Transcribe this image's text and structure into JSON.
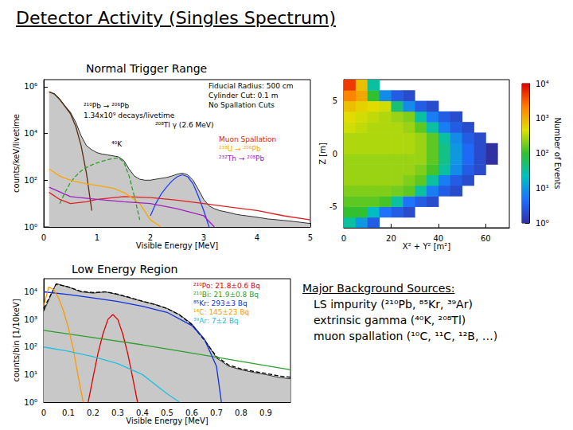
{
  "header": {
    "title": "Detector Activity (Singles Spectrum)"
  },
  "sources": {
    "title": "Major Background Sources:",
    "items": [
      "LS impurity (²¹⁰Pb, ⁸⁵Kr, ³⁹Ar)",
      "extrinsic gamma (⁴⁰K, ²⁰⁸Tl)",
      "muon spallation (¹⁰C, ¹¹C, ¹²B, …)"
    ]
  },
  "chart_data": [
    {
      "type": "line",
      "title": "Normal Trigger Range",
      "xlabel": "Visible Energy [MeV]",
      "ylabel": "counts/keV/livetime",
      "log": "y",
      "grid": false,
      "xlim": [
        0,
        5
      ],
      "xticks": [
        0,
        1,
        2,
        3,
        4,
        5
      ],
      "ylim": [
        1,
        2000000
      ],
      "yticks": [
        {
          "value": 1,
          "label": "10⁰"
        },
        {
          "value": 100,
          "label": "10²"
        },
        {
          "value": 10000,
          "label": "10⁴"
        },
        {
          "value": 1000000,
          "label": "10⁶"
        }
      ],
      "annotations": [
        "Fiducial Radius: 500 cm",
        "Cylinder Cut: 0.1 m",
        "No Spallation Cuts",
        "1.34x10⁹ decays/livetime"
      ],
      "series": [
        {
          "type": "area",
          "color": "#c8c8c8",
          "x": [
            0.1,
            0.2,
            0.3,
            0.4,
            0.5,
            0.6,
            0.7,
            0.8,
            0.9,
            1.0,
            1.1,
            1.2,
            1.3,
            1.4,
            1.5,
            1.6,
            1.7,
            1.8,
            1.9,
            2.0,
            2.1,
            2.2,
            2.3,
            2.4,
            2.5,
            2.6,
            2.7,
            2.8,
            2.9,
            3.0,
            3.1,
            3.2,
            3.3,
            3.4,
            3.5,
            3.6,
            3.7,
            3.8,
            3.9,
            4.0,
            4.1,
            4.2,
            4.3,
            4.4,
            4.5,
            4.6,
            4.7,
            4.8,
            4.9,
            5.0
          ],
          "values": [
            600000,
            500000,
            300000,
            150000,
            80000,
            30000,
            8000,
            3000,
            2000,
            1500,
            1300,
            1200,
            1100,
            1000,
            700,
            300,
            150,
            110,
            100,
            100,
            110,
            120,
            130,
            150,
            180,
            200,
            170,
            100,
            40,
            15,
            8,
            6,
            5,
            4.5,
            4,
            3.5,
            3.2,
            3,
            2.8,
            2.6,
            2.4,
            2.2,
            2.1,
            2,
            1.9,
            1.8,
            1.7,
            1.6,
            1.5,
            1.4
          ]
        },
        {
          "name": "²¹⁰Pb → ²⁰⁶Pb",
          "color": "#5a2d0c",
          "x": [
            0.1,
            0.2,
            0.3,
            0.4,
            0.5,
            0.6,
            0.7,
            0.8,
            0.9
          ],
          "values": [
            600000,
            480000,
            280000,
            140000,
            70000,
            20000,
            3000,
            200,
            5
          ]
        },
        {
          "name": "⁴⁰K",
          "color": "#2ca02c",
          "line_style": "dashed",
          "x": [
            0.3,
            0.4,
            0.5,
            0.6,
            0.7,
            0.8,
            0.9,
            1.0,
            1.1,
            1.2,
            1.3,
            1.4,
            1.5,
            1.6,
            1.7,
            1.8
          ],
          "values": [
            10,
            30,
            80,
            150,
            250,
            350,
            450,
            550,
            650,
            750,
            850,
            900,
            600,
            150,
            20,
            2
          ]
        },
        {
          "name": "²⁰⁸Tl γ (2.6 MeV)",
          "color": "#1f3fff",
          "x": [
            2.0,
            2.1,
            2.2,
            2.3,
            2.4,
            2.5,
            2.6,
            2.7,
            2.8,
            2.9,
            3.0,
            3.1
          ],
          "values": [
            3,
            10,
            25,
            50,
            90,
            140,
            170,
            140,
            70,
            20,
            5,
            1
          ]
        },
        {
          "name": "Muon Spallation",
          "color": "#e02020",
          "x": [
            0.1,
            0.3,
            0.5,
            0.8,
            1.0,
            1.5,
            2.0,
            2.5,
            3.0,
            3.5,
            4.0,
            4.5,
            5.0
          ],
          "values": [
            30,
            15,
            10,
            12,
            15,
            20,
            18,
            14,
            10,
            7,
            5,
            3,
            2
          ]
        },
        {
          "name": "²³⁸U → ²⁰⁶Pb",
          "color": "#ffa500",
          "x": [
            0.1,
            0.3,
            0.5,
            0.8,
            1.0,
            1.3,
            1.5,
            1.7,
            1.8,
            2.0,
            2.2
          ],
          "values": [
            300,
            150,
            100,
            70,
            60,
            45,
            30,
            15,
            10,
            2,
            1
          ]
        },
        {
          "name": "²³²Th → ²⁰⁸Pb",
          "color": "#a020c0",
          "x": [
            0.1,
            0.5,
            1.0,
            1.5,
            2.0,
            2.5,
            2.8,
            3.0,
            3.2
          ],
          "values": [
            50,
            20,
            15,
            12,
            10,
            6,
            4,
            3,
            1
          ]
        }
      ]
    },
    {
      "type": "heatmap",
      "xlabel": "X² + Y² [m²]",
      "ylabel": "Z [m]",
      "xlim": [
        0,
        70
      ],
      "xticks": [
        0,
        20,
        40,
        60
      ],
      "ylim": [
        -7,
        7
      ],
      "yticks": [
        -5,
        0,
        5
      ],
      "x_bins": [
        0,
        5,
        10,
        15,
        20,
        25,
        30,
        35,
        40,
        45,
        50,
        55,
        60,
        65,
        70
      ],
      "y_bins": [
        -7,
        -6,
        -5,
        -4,
        -3,
        -2,
        -1,
        0,
        1,
        2,
        3,
        4,
        5,
        6,
        7
      ],
      "counts": [
        [
          30,
          10,
          3,
          null,
          null,
          null,
          null,
          null,
          null,
          null,
          null,
          null,
          null,
          null
        ],
        [
          100,
          100,
          20,
          5,
          3,
          2,
          null,
          null,
          null,
          null,
          null,
          null,
          null,
          null
        ],
        [
          150,
          150,
          150,
          120,
          30,
          5,
          3,
          2,
          null,
          null,
          null,
          null,
          null,
          null
        ],
        [
          200,
          200,
          200,
          200,
          180,
          150,
          30,
          6,
          3,
          2,
          null,
          null,
          null,
          null
        ],
        [
          250,
          250,
          250,
          250,
          250,
          200,
          150,
          30,
          6,
          3,
          2,
          null,
          null,
          null
        ],
        [
          250,
          250,
          250,
          250,
          250,
          250,
          200,
          120,
          30,
          8,
          3,
          2,
          null,
          null
        ],
        [
          250,
          250,
          250,
          250,
          250,
          250,
          250,
          150,
          40,
          10,
          4,
          2,
          1,
          null
        ],
        [
          300,
          300,
          300,
          300,
          300,
          300,
          250,
          150,
          40,
          10,
          4,
          2,
          1,
          null
        ],
        [
          300,
          300,
          300,
          300,
          300,
          300,
          250,
          150,
          30,
          8,
          3,
          2,
          null,
          null
        ],
        [
          400,
          350,
          300,
          300,
          300,
          250,
          150,
          30,
          6,
          3,
          2,
          null,
          null,
          null
        ],
        [
          500,
          400,
          350,
          300,
          250,
          200,
          30,
          6,
          3,
          2,
          null,
          null,
          null,
          null
        ],
        [
          800,
          600,
          500,
          400,
          50,
          8,
          3,
          2,
          null,
          null,
          null,
          null,
          null,
          null
        ],
        [
          2000,
          1200,
          100,
          8,
          3,
          2,
          null,
          null,
          null,
          null,
          null,
          null,
          null,
          null
        ],
        [
          5000,
          800,
          30,
          null,
          null,
          null,
          null,
          null,
          null,
          null,
          null,
          null,
          null,
          null
        ]
      ],
      "colorbar": {
        "label": "Number of Events",
        "log": true,
        "range": [
          1,
          10000
        ],
        "ticks": [
          {
            "value": 1,
            "label": "10⁰"
          },
          {
            "value": 10,
            "label": "10¹"
          },
          {
            "value": 100,
            "label": "10²"
          },
          {
            "value": 1000,
            "label": "10³"
          },
          {
            "value": 10000,
            "label": "10⁴"
          }
        ]
      }
    },
    {
      "type": "line",
      "title": "Low Energy Region",
      "xlabel": "Visible Energy [MeV]",
      "ylabel": "counts/bin [1/10keV]",
      "log": "y",
      "grid": false,
      "xlim": [
        0,
        1
      ],
      "xticks": [
        0,
        0.1,
        0.2,
        0.3,
        0.4,
        0.5,
        0.6,
        0.7,
        0.8,
        0.9
      ],
      "ylim": [
        1,
        30000
      ],
      "yticks": [
        {
          "value": 1,
          "label": "10⁰"
        },
        {
          "value": 10,
          "label": "10¹"
        },
        {
          "value": 100,
          "label": "10²"
        },
        {
          "value": 1000,
          "label": "10³"
        },
        {
          "value": 10000,
          "label": "10⁴"
        }
      ],
      "series": [
        {
          "type": "area",
          "color": "#c8c8c8",
          "x": [
            0,
            0.05,
            0.1,
            0.15,
            0.2,
            0.25,
            0.3,
            0.35,
            0.4,
            0.45,
            0.5,
            0.55,
            0.6,
            0.65,
            0.7,
            0.75,
            0.8,
            0.85,
            0.9,
            0.95,
            1.0
          ],
          "values": [
            2000,
            20000,
            15000,
            10000,
            9000,
            10000,
            8000,
            6000,
            4500,
            3500,
            2500,
            1500,
            700,
            200,
            40,
            20,
            15,
            12,
            10,
            8,
            7
          ]
        },
        {
          "color": "#000000",
          "line_style": "dashed",
          "x": [
            0,
            0.05,
            0.1,
            0.15,
            0.2,
            0.25,
            0.3,
            0.35,
            0.4,
            0.45,
            0.5,
            0.55,
            0.6,
            0.65,
            0.7,
            0.75,
            0.8,
            0.85,
            0.9,
            0.95,
            1.0
          ],
          "values": [
            2500,
            19000,
            15000,
            10500,
            9500,
            10000,
            8200,
            6200,
            4600,
            3500,
            2500,
            1450,
            650,
            180,
            45,
            22,
            16,
            13,
            11,
            9,
            8
          ]
        },
        {
          "name": "²¹⁰Po: 21.8±0.6 Bq",
          "color": "#e00000",
          "x": [
            0.18,
            0.2,
            0.22,
            0.24,
            0.26,
            0.28,
            0.3,
            0.32,
            0.34,
            0.36,
            0.38
          ],
          "values": [
            1,
            8,
            60,
            300,
            1000,
            1500,
            1000,
            300,
            60,
            8,
            1
          ]
        },
        {
          "name": "²¹⁰Bi: 21.9±0.8 Bq",
          "color": "#2e9e2e",
          "x": [
            0,
            0.2,
            0.4,
            0.6,
            0.8,
            1.0
          ],
          "values": [
            400,
            220,
            120,
            60,
            30,
            15
          ]
        },
        {
          "name": "⁸⁵Kr: 293±3 Bq",
          "color": "#1030e0",
          "x": [
            0,
            0.1,
            0.2,
            0.3,
            0.4,
            0.5,
            0.6,
            0.65,
            0.7,
            0.72
          ],
          "values": [
            10000,
            8000,
            6000,
            4500,
            3000,
            1800,
            600,
            200,
            20,
            1
          ]
        },
        {
          "name": "¹⁴C: 145±23 Bq",
          "color": "#ff9900",
          "x": [
            0,
            0.02,
            0.04,
            0.06,
            0.08,
            0.1,
            0.12,
            0.14,
            0.16
          ],
          "values": [
            3000,
            15000,
            12000,
            6000,
            2000,
            500,
            80,
            8,
            1
          ]
        },
        {
          "name": "³⁹Ar: 7±2 Bq",
          "color": "#20c0e0",
          "x": [
            0,
            0.1,
            0.2,
            0.3,
            0.4,
            0.5,
            0.55
          ],
          "values": [
            100,
            70,
            45,
            25,
            10,
            2,
            1
          ]
        }
      ]
    }
  ]
}
